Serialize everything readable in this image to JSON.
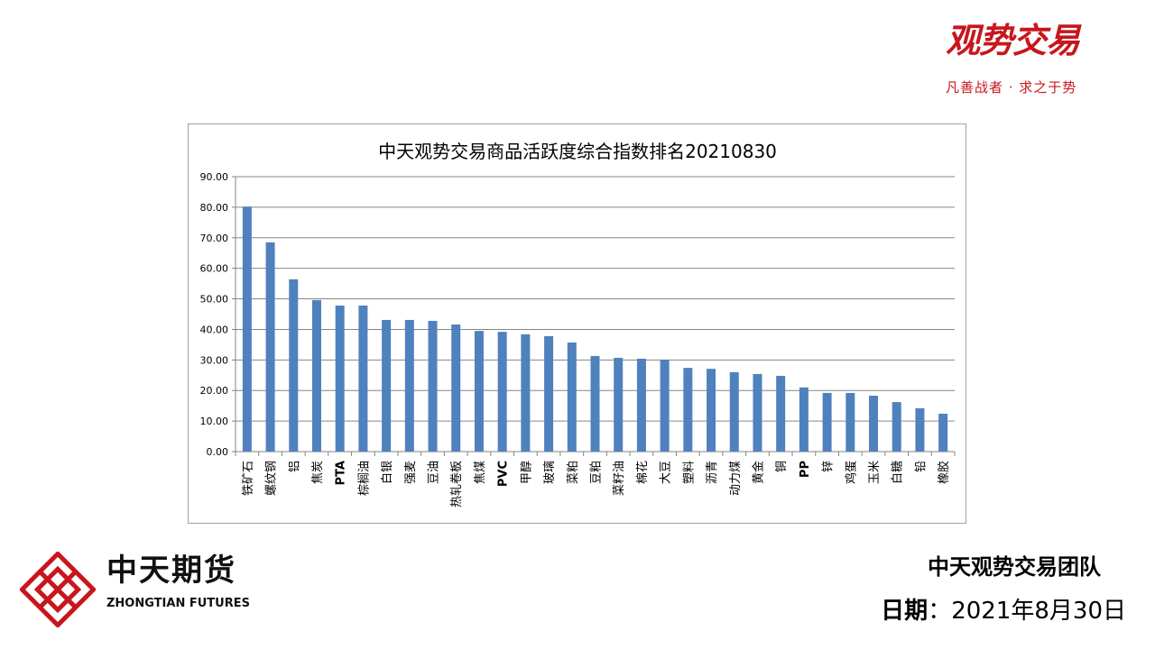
{
  "brand": {
    "title": "观势交易",
    "slogan": "凡善战者 · 求之于势"
  },
  "footer": {
    "company_cn": "中天期货",
    "company_en": "ZHONGTIAN FUTURES",
    "team": "中天观势交易团队",
    "date_label": "日期",
    "date_sep": "：",
    "date_value": "2021年8月30日"
  },
  "colors": {
    "bar": "#4f81bd",
    "brand_red": "#c8161d",
    "grid": "#868686"
  },
  "chart_data": {
    "type": "bar",
    "title": "中天观势交易商品活跃度综合指数排名20210830",
    "xlabel": "",
    "ylabel": "",
    "ylim": [
      0,
      90
    ],
    "yticks": [
      "0.00",
      "10.00",
      "20.00",
      "30.00",
      "40.00",
      "50.00",
      "60.00",
      "70.00",
      "80.00",
      "90.00"
    ],
    "grid": true,
    "categories": [
      "铁矿石",
      "螺纹钢",
      "铝",
      "焦炭",
      "PTA",
      "棕榈油",
      "白银",
      "强麦",
      "豆油",
      "热轧卷板",
      "焦煤",
      "PVC",
      "甲醇",
      "玻璃",
      "菜粕",
      "豆粕",
      "菜籽油",
      "棉花",
      "大豆",
      "塑料",
      "沥青",
      "动力煤",
      "黄金",
      "铜",
      "PP",
      "锌",
      "鸡蛋",
      "玉米",
      "白糖",
      "铅",
      "橡胶"
    ],
    "values": [
      80.2,
      68.5,
      56.4,
      49.6,
      47.8,
      47.8,
      43.1,
      43.1,
      42.8,
      41.6,
      39.5,
      39.2,
      38.4,
      37.8,
      35.7,
      31.3,
      30.7,
      30.4,
      30.1,
      27.4,
      27.1,
      26.0,
      25.4,
      24.8,
      21.0,
      19.2,
      19.2,
      18.3,
      16.2,
      14.2,
      12.4
    ]
  }
}
